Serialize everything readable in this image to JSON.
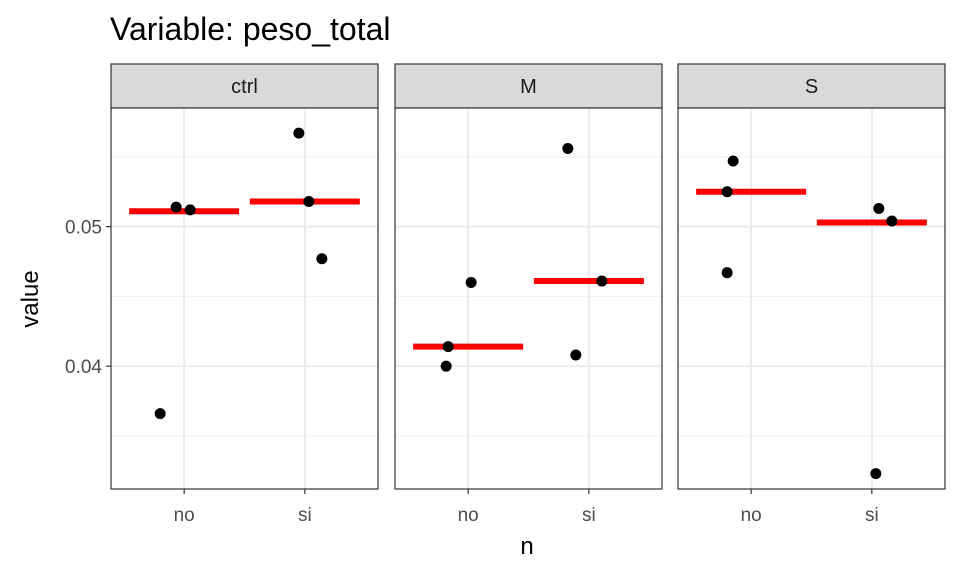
{
  "chart_data": {
    "type": "scatter",
    "title": "Variable: peso_total",
    "xlabel": "n",
    "ylabel": "value",
    "categories": [
      "no",
      "si"
    ],
    "ylim": [
      0.0312,
      0.0585
    ],
    "y_ticks": [
      0.04,
      0.05
    ],
    "y_tick_labels": [
      "0.04",
      "0.05"
    ],
    "grid": true,
    "theme": "bw",
    "point_color": "#000000",
    "mean_color": "#ff0000",
    "panels": [
      {
        "strip": "ctrl",
        "points": [
          {
            "x": "no",
            "y": 0.0514
          },
          {
            "x": "no",
            "y": 0.0512
          },
          {
            "x": "no",
            "y": 0.0366
          },
          {
            "x": "si",
            "y": 0.0567
          },
          {
            "x": "si",
            "y": 0.0518
          },
          {
            "x": "si",
            "y": 0.0477
          }
        ],
        "means": [
          {
            "x": "no",
            "y": 0.0511
          },
          {
            "x": "si",
            "y": 0.0518
          }
        ]
      },
      {
        "strip": "M",
        "points": [
          {
            "x": "no",
            "y": 0.046
          },
          {
            "x": "no",
            "y": 0.0414
          },
          {
            "x": "no",
            "y": 0.04
          },
          {
            "x": "si",
            "y": 0.0556
          },
          {
            "x": "si",
            "y": 0.0461
          },
          {
            "x": "si",
            "y": 0.0408
          }
        ],
        "means": [
          {
            "x": "no",
            "y": 0.0414
          },
          {
            "x": "si",
            "y": 0.0461
          }
        ]
      },
      {
        "strip": "S",
        "points": [
          {
            "x": "no",
            "y": 0.0547
          },
          {
            "x": "no",
            "y": 0.0525
          },
          {
            "x": "no",
            "y": 0.0467
          },
          {
            "x": "si",
            "y": 0.0513
          },
          {
            "x": "si",
            "y": 0.0504
          },
          {
            "x": "si",
            "y": 0.0323
          }
        ],
        "means": [
          {
            "x": "no",
            "y": 0.0525
          },
          {
            "x": "si",
            "y": 0.0503
          }
        ]
      }
    ]
  }
}
